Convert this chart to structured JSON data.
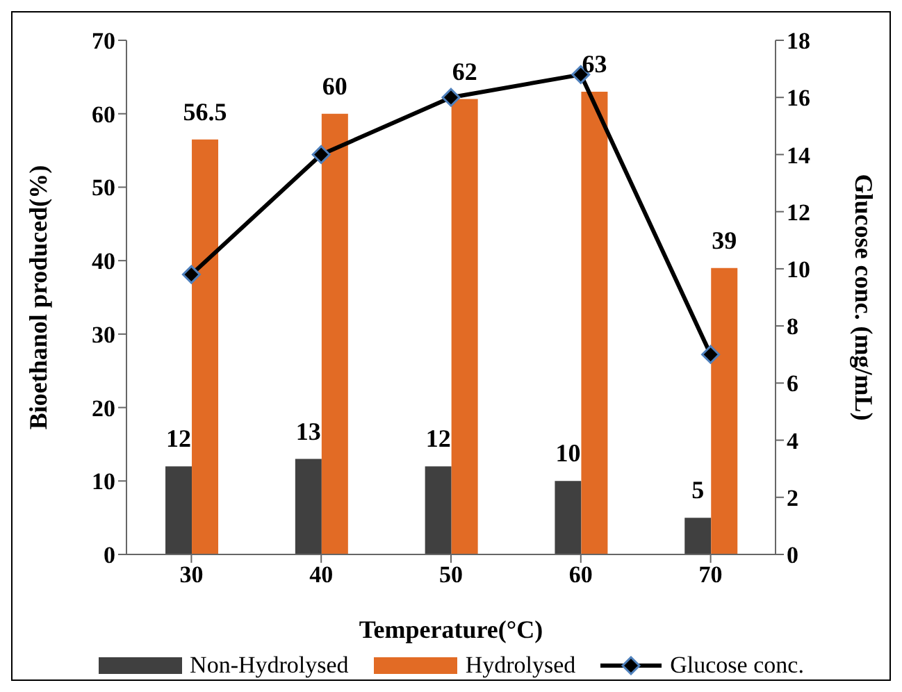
{
  "chart_data": {
    "type": "bar",
    "xlabel": "Temperature(°C)",
    "ylabel": "Bioethanol produced(%)",
    "y2label": "Glucose conc. (mg/mL)",
    "categories": [
      "30",
      "40",
      "50",
      "60",
      "70"
    ],
    "series": [
      {
        "name": "Non-Hydrolysed",
        "color": "#404040",
        "values": [
          12,
          13,
          12,
          10,
          5
        ],
        "value_labels": [
          "12",
          "13",
          "12",
          "10",
          "5"
        ]
      },
      {
        "name": "Hydrolysed",
        "color": "#e26b25",
        "values": [
          56.5,
          60,
          62,
          63,
          39
        ],
        "value_labels": [
          "56.5",
          "60",
          "62",
          "63",
          "39"
        ]
      },
      {
        "name": "Glucose conc.",
        "type": "line",
        "axis": "y2",
        "color": "#000000",
        "values": [
          9.8,
          14,
          16,
          16.8,
          7
        ],
        "marker": "diamond"
      }
    ],
    "ylim": [
      0,
      70
    ],
    "yticks": [
      0,
      10,
      20,
      30,
      40,
      50,
      60,
      70
    ],
    "y2lim": [
      0,
      18
    ],
    "y2ticks": [
      0,
      2,
      4,
      6,
      8,
      10,
      12,
      14,
      16,
      18
    ],
    "legend": "bottom"
  }
}
